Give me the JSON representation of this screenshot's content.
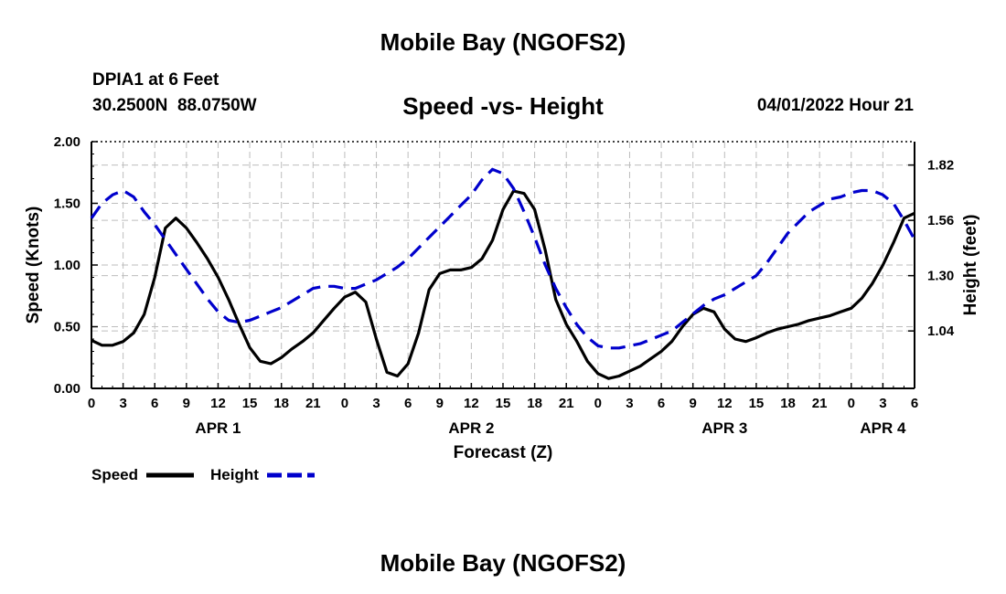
{
  "header": {
    "title": "Mobile Bay (NGOFS2)",
    "station": "DPIA1 at 6 Feet",
    "coords": "30.2500N  88.0750W",
    "subtitle": "Speed -vs- Height",
    "datetime": "04/01/2022 Hour 21"
  },
  "footer": {
    "title": "Mobile Bay (NGOFS2)"
  },
  "colors": {
    "speed": "#000000",
    "height": "#0000cc",
    "grid": "#bdbdbd"
  },
  "chart_data": {
    "type": "line",
    "title": "Speed -vs- Height",
    "xlabel": "Forecast (Z)",
    "ylabel": "Speed (Knots)",
    "y2label": "Height (feet)",
    "xlim": [
      0,
      78
    ],
    "ylim": [
      0,
      2
    ],
    "y2lim": [
      0.77,
      1.93
    ],
    "x_ticks": [
      0,
      3,
      6,
      9,
      12,
      15,
      18,
      21,
      24,
      27,
      30,
      33,
      36,
      39,
      42,
      45,
      48,
      51,
      54,
      57,
      60,
      63,
      66,
      69,
      72,
      75,
      78
    ],
    "x_tick_labels": [
      "0",
      "3",
      "6",
      "9",
      "12",
      "15",
      "18",
      "21",
      "0",
      "3",
      "6",
      "9",
      "12",
      "15",
      "18",
      "21",
      "0",
      "3",
      "6",
      "9",
      "12",
      "15",
      "18",
      "21",
      "0",
      "3",
      "6"
    ],
    "day_labels": [
      {
        "x": 12,
        "label": "APR 1"
      },
      {
        "x": 36,
        "label": "APR 2"
      },
      {
        "x": 60,
        "label": "APR 3"
      },
      {
        "x": 75,
        "label": "APR 4"
      }
    ],
    "y_ticks": [
      0,
      0.5,
      1,
      1.5,
      2
    ],
    "y_tick_labels": [
      "0.00",
      "0.50",
      "1.00",
      "1.50",
      "2.00"
    ],
    "y2_ticks": [
      1.04,
      1.3,
      1.56,
      1.82
    ],
    "y2_tick_labels": [
      "1.04",
      "1.30",
      "1.56",
      "1.82"
    ],
    "legend": [
      {
        "label": "Speed",
        "color": "#000000",
        "dash": false
      },
      {
        "label": "Height",
        "color": "#0000cc",
        "dash": true
      }
    ],
    "series": [
      {
        "name": "Speed",
        "axis": "left",
        "x": [
          0,
          1,
          2,
          3,
          4,
          5,
          6,
          7,
          8,
          9,
          10,
          11,
          12,
          13,
          14,
          15,
          16,
          17,
          18,
          19,
          20,
          21,
          22,
          23,
          24,
          25,
          26,
          27,
          28,
          29,
          30,
          31,
          32,
          33,
          34,
          35,
          36,
          37,
          38,
          39,
          40,
          41,
          42,
          43,
          44,
          45,
          46,
          47,
          48,
          49,
          50,
          51,
          52,
          53,
          54,
          55,
          56,
          57,
          58,
          59,
          60,
          61,
          62,
          63,
          64,
          65,
          66,
          67,
          68,
          69,
          70,
          71,
          72,
          73,
          74,
          75,
          76,
          77,
          78
        ],
        "values": [
          0.39,
          0.35,
          0.35,
          0.38,
          0.45,
          0.6,
          0.9,
          1.3,
          1.38,
          1.3,
          1.18,
          1.05,
          0.9,
          0.72,
          0.52,
          0.33,
          0.22,
          0.2,
          0.25,
          0.32,
          0.38,
          0.45,
          0.55,
          0.65,
          0.74,
          0.78,
          0.7,
          0.4,
          0.13,
          0.1,
          0.2,
          0.45,
          0.8,
          0.93,
          0.96,
          0.96,
          0.98,
          1.05,
          1.2,
          1.45,
          1.6,
          1.58,
          1.45,
          1.12,
          0.72,
          0.52,
          0.38,
          0.22,
          0.12,
          0.08,
          0.1,
          0.14,
          0.18,
          0.24,
          0.3,
          0.38,
          0.5,
          0.6,
          0.65,
          0.62,
          0.48,
          0.4,
          0.38,
          0.41,
          0.45,
          0.48,
          0.5,
          0.52,
          0.55,
          0.57,
          0.59,
          0.62,
          0.65,
          0.73,
          0.85,
          1.0,
          1.18,
          1.38,
          1.42
        ]
      },
      {
        "name": "Height",
        "axis": "right",
        "x": [
          0,
          1,
          2,
          3,
          4,
          5,
          6,
          7,
          8,
          9,
          10,
          11,
          12,
          13,
          14,
          15,
          16,
          17,
          18,
          19,
          20,
          21,
          22,
          23,
          24,
          25,
          26,
          27,
          28,
          29,
          30,
          31,
          32,
          33,
          34,
          35,
          36,
          37,
          38,
          39,
          40,
          41,
          42,
          43,
          44,
          45,
          46,
          47,
          48,
          49,
          50,
          51,
          52,
          53,
          54,
          55,
          56,
          57,
          58,
          59,
          60,
          61,
          62,
          63,
          64,
          65,
          66,
          67,
          68,
          69,
          70,
          71,
          72,
          73,
          74,
          75,
          76,
          77,
          78
        ],
        "values": [
          1.57,
          1.64,
          1.68,
          1.7,
          1.67,
          1.6,
          1.54,
          1.47,
          1.4,
          1.33,
          1.26,
          1.19,
          1.13,
          1.09,
          1.08,
          1.09,
          1.11,
          1.13,
          1.15,
          1.18,
          1.21,
          1.24,
          1.25,
          1.25,
          1.24,
          1.24,
          1.26,
          1.28,
          1.31,
          1.34,
          1.38,
          1.43,
          1.48,
          1.53,
          1.58,
          1.63,
          1.68,
          1.75,
          1.8,
          1.78,
          1.71,
          1.6,
          1.48,
          1.35,
          1.24,
          1.15,
          1.07,
          1.01,
          0.97,
          0.96,
          0.96,
          0.97,
          0.98,
          1.0,
          1.02,
          1.04,
          1.08,
          1.12,
          1.16,
          1.19,
          1.21,
          1.24,
          1.27,
          1.3,
          1.36,
          1.43,
          1.5,
          1.55,
          1.6,
          1.63,
          1.66,
          1.67,
          1.69,
          1.7,
          1.7,
          1.68,
          1.64,
          1.56,
          1.47
        ]
      }
    ]
  }
}
